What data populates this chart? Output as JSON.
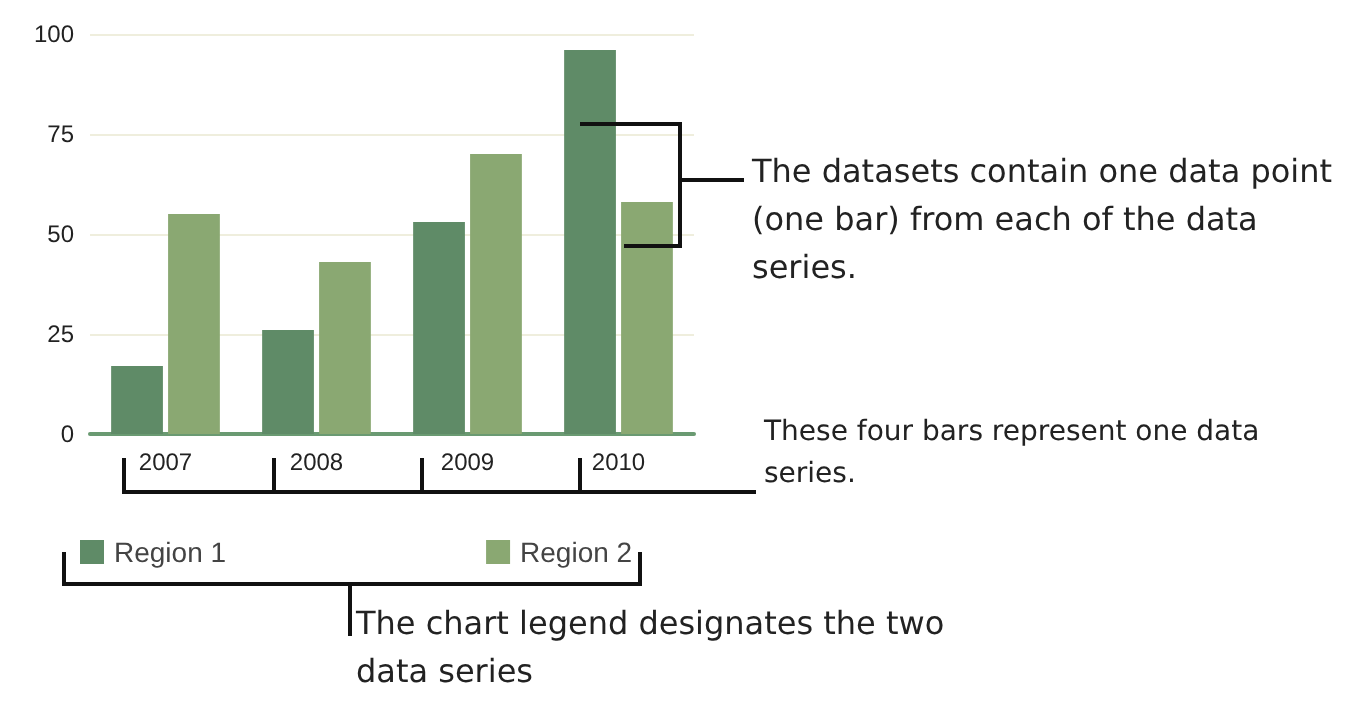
{
  "chart_data": {
    "type": "bar",
    "categories": [
      "2007",
      "2008",
      "2009",
      "2010"
    ],
    "series": [
      {
        "name": "Region 1",
        "color": "#5f8b67",
        "values": [
          17,
          26,
          53,
          96
        ]
      },
      {
        "name": "Region 2",
        "color": "#8aa872",
        "values": [
          55,
          43,
          70,
          58
        ]
      }
    ],
    "ylim": [
      0,
      100
    ],
    "yticks": [
      0,
      25,
      50,
      75,
      100
    ],
    "grid": "y",
    "legend": "bottom left",
    "annotations": [
      "The datasets contain one data point (one bar) from each of the data series.",
      "These four bars represent one data series.",
      "The chart legend designates the two data series"
    ]
  }
}
